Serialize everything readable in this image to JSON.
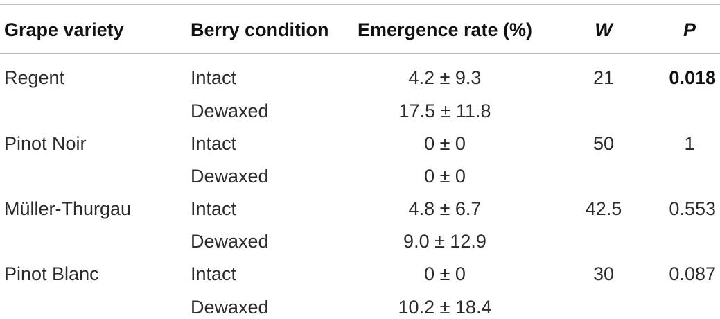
{
  "table": {
    "headers": [
      "Grape variety",
      "Berry condition",
      "Emergence rate (%)",
      "W",
      "P"
    ],
    "rows": [
      {
        "variety": "Regent",
        "condition": "Intact",
        "rate": "4.2 ± 9.3",
        "w": "21",
        "p": "0.018"
      },
      {
        "variety": "",
        "condition": "Dewaxed",
        "rate": "17.5 ± 11.8",
        "w": "",
        "p": ""
      },
      {
        "variety": "Pinot Noir",
        "condition": "Intact",
        "rate": "0 ± 0",
        "w": "50",
        "p": "1"
      },
      {
        "variety": "",
        "condition": "Dewaxed",
        "rate": "0 ± 0",
        "w": "",
        "p": ""
      },
      {
        "variety": "Müller-Thurgau",
        "condition": "Intact",
        "rate": "4.8 ± 6.7",
        "w": "42.5",
        "p": "0.553"
      },
      {
        "variety": "",
        "condition": "Dewaxed",
        "rate": "9.0 ± 12.9",
        "w": "",
        "p": ""
      },
      {
        "variety": "Pinot Blanc",
        "condition": "Intact",
        "rate": "0 ± 0",
        "w": "30",
        "p": "0.087"
      },
      {
        "variety": "",
        "condition": "Dewaxed",
        "rate": "10.2 ± 18.4",
        "w": "",
        "p": ""
      }
    ]
  }
}
